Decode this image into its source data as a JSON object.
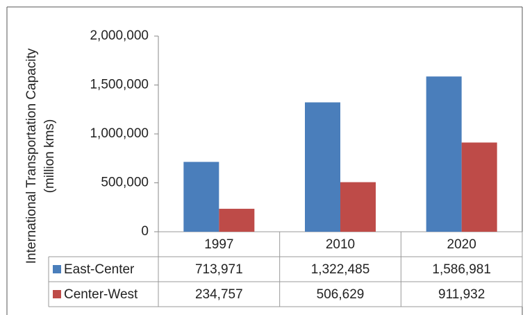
{
  "chart_data": {
    "type": "bar",
    "y_label": [
      "International Transportation Capacity",
      "(million kms)"
    ],
    "categories": [
      "1997",
      "2010",
      "2020"
    ],
    "series": [
      {
        "name": "East-Center",
        "color": "#4a7ebb",
        "values": [
          713971,
          1322485,
          1586981
        ],
        "value_labels": [
          "713,971",
          "1,322,485",
          "1,586,981"
        ]
      },
      {
        "name": "Center-West",
        "color": "#be4b48",
        "values": [
          234757,
          506629,
          911932
        ],
        "value_labels": [
          "234,757",
          "506,629",
          "911,932"
        ]
      }
    ],
    "ylim": [
      0,
      2000000
    ],
    "yticks": [
      0,
      {
        "value": 500000,
        "label": "500,000"
      },
      {
        "value": 1000000,
        "label": "1,000,000"
      },
      {
        "value": 1500000,
        "label": "1,500,000"
      },
      {
        "value": 2000000,
        "label": "2,000,000"
      }
    ],
    "grid": false
  }
}
